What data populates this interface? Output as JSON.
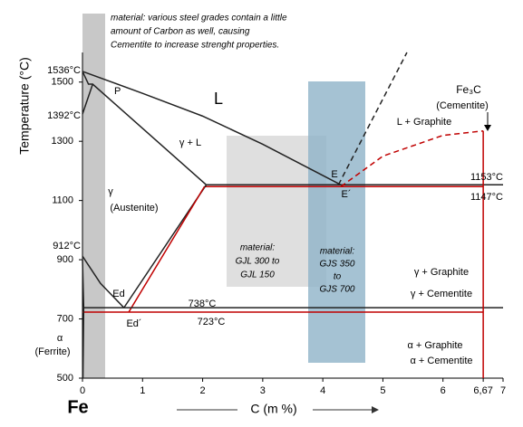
{
  "chart_data": {
    "type": "phase",
    "y_label": "Temperature (°C)",
    "x_label": "C (m %)",
    "element": "Fe",
    "xlim": [
      0,
      7
    ],
    "ylim": [
      500,
      1600
    ],
    "xticks": [
      0,
      1,
      2,
      3,
      4,
      5,
      6,
      {
        "value": 6.67,
        "label": "6,67"
      },
      7
    ],
    "yticks": [
      500,
      700,
      900,
      1100,
      1300,
      1500
    ],
    "note_lines": [
      "material: various steel grades contain a little",
      "amount of Carbon as well, causing",
      "Cementite to increase strenght properties."
    ],
    "gjl_lines": [
      "material:",
      "GJL 300 to",
      "GJL 150"
    ],
    "gjs_lines": [
      "material:",
      "GJS 350",
      "to",
      "GJS 700"
    ],
    "annotations": [
      {
        "text": "1536°C",
        "color": "#222222"
      },
      {
        "text": "1392°C",
        "color": "#222222"
      },
      {
        "text": "912°C",
        "color": "#222222"
      },
      {
        "text": "P",
        "color": "#222222"
      },
      {
        "text": "L",
        "color": "#222222"
      },
      {
        "text": "γ + L",
        "color": "#222222"
      },
      {
        "text": "γ",
        "color": "#222222"
      },
      {
        "text": "(Austenite)",
        "color": "#222222"
      },
      {
        "text": "E",
        "color": "#222222"
      },
      {
        "text": "E´",
        "color": "#c00000"
      },
      {
        "text": "1153°C",
        "color": "#222222"
      },
      {
        "text": "1147°C",
        "color": "#c00000"
      },
      {
        "text": "Fe₃C",
        "color": "#c00000"
      },
      {
        "text": "(Cementite)",
        "color": "#c00000"
      },
      {
        "text": "L + Graphite",
        "color": "#222222"
      },
      {
        "text": "γ + Graphite",
        "color": "#222222"
      },
      {
        "text": "γ + Cementite",
        "color": "#c00000"
      },
      {
        "text": "Ed",
        "color": "#222222"
      },
      {
        "text": "Ed´",
        "color": "#c00000"
      },
      {
        "text": "738°C",
        "color": "#222222"
      },
      {
        "text": "723°C",
        "color": "#c00000"
      },
      {
        "text": "α",
        "color": "#222222"
      },
      {
        "text": "(Ferrite)",
        "color": "#222222"
      },
      {
        "text": "α + Graphite",
        "color": "#222222"
      },
      {
        "text": "α + Cementite",
        "color": "#c00000"
      }
    ],
    "series": [
      {
        "color": "#222222",
        "dash": false,
        "x": [
          0,
          1,
          2,
          3,
          4.3
        ],
        "values": [
          1536,
          1462,
          1385,
          1290,
          1153
        ]
      },
      {
        "color": "#222222",
        "dash": false,
        "x": [
          0,
          0.1,
          0.17,
          2.06
        ],
        "values": [
          1536,
          1493,
          1493,
          1153
        ]
      },
      {
        "color": "#222222",
        "dash": false,
        "x": [
          0,
          0.17
        ],
        "values": [
          1392,
          1493
        ]
      },
      {
        "color": "#222222",
        "dash": false,
        "x": [
          2.06,
          7
        ],
        "values": [
          1153,
          1153
        ]
      },
      {
        "color": "#c00000",
        "dash": false,
        "x": [
          2.03,
          6.67
        ],
        "values": [
          1147,
          1147
        ]
      },
      {
        "color": "#222222",
        "dash": false,
        "x": [
          2.06,
          0.69
        ],
        "values": [
          1153,
          738
        ]
      },
      {
        "color": "#c00000",
        "dash": false,
        "x": [
          2.03,
          0.77
        ],
        "values": [
          1147,
          723
        ]
      },
      {
        "color": "#222222",
        "dash": false,
        "x": [
          0,
          0.3,
          0.69
        ],
        "values": [
          912,
          820,
          738
        ]
      },
      {
        "color": "#222222",
        "dash": false,
        "x": [
          0,
          7
        ],
        "values": [
          738,
          738
        ]
      },
      {
        "color": "#c00000",
        "dash": false,
        "x": [
          0,
          6.67
        ],
        "values": [
          723,
          723
        ]
      },
      {
        "color": "#222222",
        "dash": true,
        "x": [
          4.26,
          5.4
        ],
        "values": [
          1153,
          1600
        ]
      },
      {
        "color": "#c00000",
        "dash": true,
        "x": [
          4.3,
          5,
          6,
          6.67
        ],
        "values": [
          1147,
          1250,
          1320,
          1335
        ]
      },
      {
        "color": "#c00000",
        "dash": false,
        "x": [
          6.67,
          6.67
        ],
        "values": [
          1335,
          500
        ]
      },
      {
        "color": "#222222",
        "dash": false,
        "x": [
          0,
          0.02,
          0.008
        ],
        "values": [
          900,
          738,
          500
        ]
      }
    ]
  }
}
